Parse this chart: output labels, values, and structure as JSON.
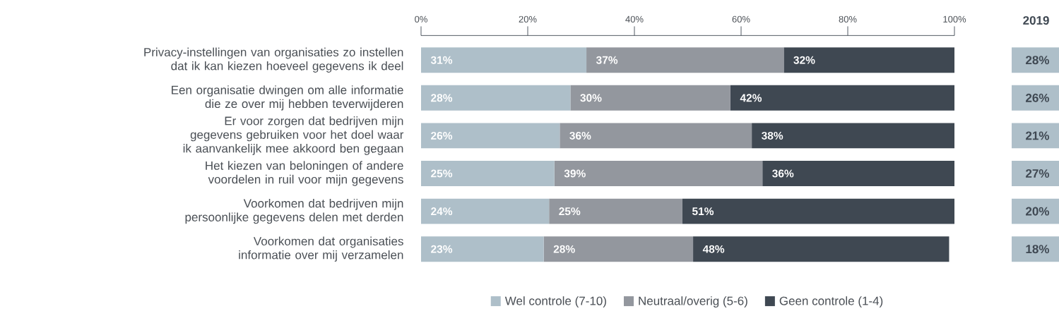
{
  "chart_data": [
    {
      "type": "bar",
      "orientation": "horizontal",
      "stacked": true,
      "legend": "bottom",
      "grid": false,
      "categories": [
        "Privacy-instellingen van organisaties zo instellen dat ik kan kiezen hoeveel gegevens ik deel",
        "Een organisatie dwingen om alle informatie die ze over mij hebben teverwijderen",
        "Er voor zorgen dat bedrijven mijn gegevens gebruiken voor het doel waar ik aanvankelijk mee akkoord ben gegaan",
        "Het kiezen van beloningen of andere voordelen in ruil voor mijn gegevens",
        "Voorkomen dat bedrijven mijn persoonlijke gegevens delen met derden",
        "Voorkomen dat organisaties informatie over mij verzamelen"
      ],
      "xlim": [
        0,
        100
      ],
      "xticks": [
        {
          "value": 0,
          "label": "0%"
        },
        {
          "value": 20,
          "label": "20%"
        },
        {
          "value": 40,
          "label": "40%"
        },
        {
          "value": 60,
          "label": "60%"
        },
        {
          "value": 80,
          "label": "80%"
        },
        {
          "value": 100,
          "label": "100%"
        }
      ],
      "series": [
        {
          "name": "Wel controle (7-10)",
          "color": "#aebfc9",
          "values": [
            31,
            28,
            26,
            25,
            24,
            23
          ],
          "value_labels": [
            "31%",
            "28%",
            "26%",
            "25%",
            "24%",
            "23%"
          ]
        },
        {
          "name": "Neutraal/overig (5-6)",
          "color": "#93979e",
          "values": [
            37,
            30,
            36,
            39,
            25,
            28
          ],
          "value_labels": [
            "37%",
            "30%",
            "36%",
            "39%",
            "25%",
            "28%"
          ]
        },
        {
          "name": "Geen controle (1-4)",
          "color": "#3f4852",
          "values": [
            32,
            42,
            38,
            36,
            51,
            48
          ],
          "value_labels": [
            "32%",
            "42%",
            "38%",
            "36%",
            "51%",
            "48%"
          ]
        }
      ]
    },
    {
      "type": "other",
      "title": "2019",
      "color": "#aebfc9",
      "value_labels": [
        "28%",
        "26%",
        "21%",
        "27%",
        "20%",
        "18%"
      ]
    }
  ]
}
